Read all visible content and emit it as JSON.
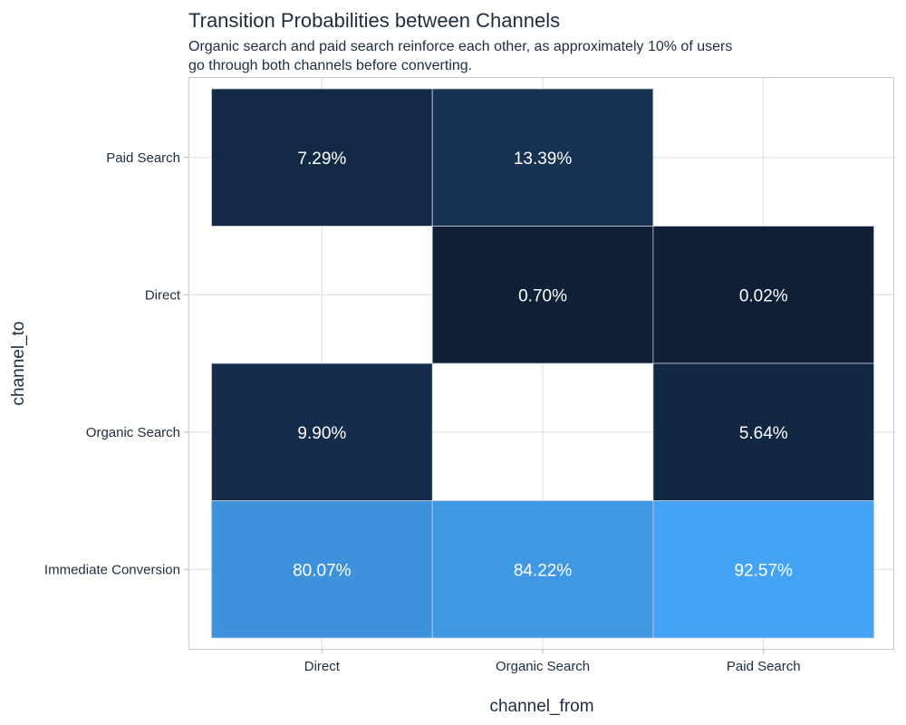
{
  "chart_data": {
    "type": "heatmap",
    "title": "Transition Probabilities between Channels",
    "subtitle_lines": [
      "Organic search and paid search reinforce each other, as approximately 10% of users",
      "go through both channels before converting."
    ],
    "xlabel": "channel_from",
    "ylabel": "channel_to",
    "x_categories": [
      "Direct",
      "Organic Search",
      "Paid Search"
    ],
    "y_categories": [
      "Immediate Conversion",
      "Organic Search",
      "Direct",
      "Paid Search"
    ],
    "grid": true,
    "legend": "none",
    "color_low": "#0f1f36",
    "color_high": "#45a3f5",
    "cells": [
      {
        "from": "Direct",
        "to": "Paid Search",
        "value": 7.29,
        "label": "7.29%"
      },
      {
        "from": "Organic Search",
        "to": "Paid Search",
        "value": 13.39,
        "label": "13.39%"
      },
      {
        "from": "Organic Search",
        "to": "Direct",
        "value": 0.7,
        "label": "0.70%"
      },
      {
        "from": "Paid Search",
        "to": "Direct",
        "value": 0.02,
        "label": "0.02%"
      },
      {
        "from": "Direct",
        "to": "Organic Search",
        "value": 9.9,
        "label": "9.90%"
      },
      {
        "from": "Paid Search",
        "to": "Organic Search",
        "value": 5.64,
        "label": "5.64%"
      },
      {
        "from": "Direct",
        "to": "Immediate Conversion",
        "value": 80.07,
        "label": "80.07%"
      },
      {
        "from": "Organic Search",
        "to": "Immediate Conversion",
        "value": 84.22,
        "label": "84.22%"
      },
      {
        "from": "Paid Search",
        "to": "Immediate Conversion",
        "value": 92.57,
        "label": "92.57%"
      }
    ]
  }
}
